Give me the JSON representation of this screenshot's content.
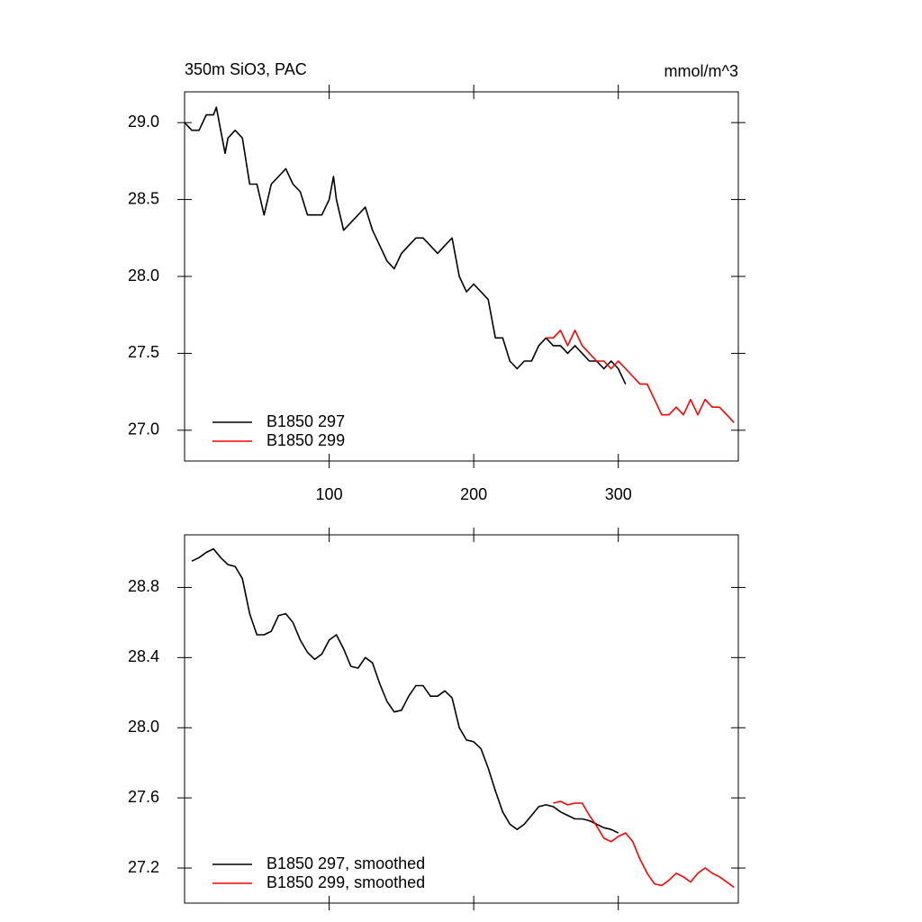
{
  "chart_data": [
    {
      "type": "line",
      "title": "350m SiO3, PAC",
      "units": "mmol/m^3",
      "xlim": [
        0,
        383
      ],
      "xticks": [
        100,
        200,
        300
      ],
      "show_xtick_labels": true,
      "ylim": [
        26.8,
        29.2
      ],
      "yticks": [
        {
          "value": 27,
          "label": "27.0"
        },
        27.5,
        {
          "value": 28,
          "label": "28.0"
        },
        28.5,
        {
          "value": 29,
          "label": "29.0"
        }
      ],
      "series": [
        {
          "name": "B1850 297",
          "color": "#000000",
          "x": [
            0,
            5,
            10,
            15,
            20,
            22,
            25,
            28,
            30,
            35,
            40,
            45,
            50,
            55,
            60,
            65,
            70,
            75,
            80,
            85,
            90,
            95,
            100,
            103,
            105,
            110,
            115,
            120,
            125,
            130,
            135,
            140,
            145,
            150,
            155,
            160,
            165,
            170,
            175,
            180,
            185,
            190,
            195,
            200,
            205,
            210,
            215,
            220,
            225,
            230,
            235,
            240,
            245,
            250,
            255,
            260,
            265,
            270,
            275,
            280,
            285,
            290,
            295,
            300,
            305
          ],
          "values": [
            29.0,
            28.95,
            28.95,
            29.05,
            29.05,
            29.1,
            28.95,
            28.8,
            28.9,
            28.95,
            28.9,
            28.6,
            28.6,
            28.4,
            28.6,
            28.65,
            28.7,
            28.6,
            28.55,
            28.4,
            28.4,
            28.4,
            28.5,
            28.65,
            28.5,
            28.3,
            28.35,
            28.4,
            28.45,
            28.3,
            28.2,
            28.1,
            28.05,
            28.15,
            28.2,
            28.25,
            28.25,
            28.2,
            28.15,
            28.2,
            28.25,
            28.0,
            27.9,
            27.95,
            27.9,
            27.85,
            27.6,
            27.6,
            27.45,
            27.4,
            27.45,
            27.45,
            27.55,
            27.6,
            27.55,
            27.55,
            27.5,
            27.55,
            27.5,
            27.45,
            27.45,
            27.4,
            27.45,
            27.4,
            27.3
          ]
        },
        {
          "name": "B1850 299",
          "color": "#ff0000",
          "x": [
            250,
            255,
            260,
            265,
            270,
            275,
            280,
            285,
            290,
            295,
            300,
            305,
            310,
            315,
            320,
            325,
            330,
            335,
            340,
            345,
            350,
            355,
            360,
            365,
            370,
            375,
            380
          ],
          "values": [
            27.6,
            27.6,
            27.65,
            27.55,
            27.65,
            27.55,
            27.5,
            27.45,
            27.45,
            27.4,
            27.45,
            27.4,
            27.35,
            27.3,
            27.3,
            27.2,
            27.1,
            27.1,
            27.15,
            27.1,
            27.2,
            27.1,
            27.2,
            27.15,
            27.15,
            27.1,
            27.05
          ]
        }
      ]
    },
    {
      "type": "line",
      "xlim": [
        0,
        383
      ],
      "xticks": [
        100,
        200,
        300
      ],
      "show_xtick_labels": false,
      "ylim": [
        27.0,
        29.1
      ],
      "yticks": [
        27.2,
        27.6,
        {
          "value": 28,
          "label": "28.0"
        },
        28.4,
        28.8
      ],
      "series": [
        {
          "name": "B1850 297, smoothed",
          "color": "#000000",
          "x": [
            5,
            10,
            15,
            20,
            25,
            30,
            35,
            40,
            45,
            50,
            55,
            60,
            65,
            70,
            75,
            80,
            85,
            90,
            95,
            100,
            105,
            110,
            115,
            120,
            125,
            130,
            135,
            140,
            145,
            150,
            155,
            160,
            165,
            170,
            175,
            180,
            185,
            190,
            195,
            200,
            205,
            210,
            215,
            220,
            225,
            230,
            235,
            240,
            245,
            250,
            255,
            260,
            265,
            270,
            275,
            280,
            285,
            290,
            295,
            300
          ],
          "values": [
            28.95,
            28.97,
            29.0,
            29.02,
            28.97,
            28.93,
            28.92,
            28.85,
            28.65,
            28.53,
            28.53,
            28.55,
            28.64,
            28.65,
            28.6,
            28.5,
            28.43,
            28.39,
            28.42,
            28.5,
            28.53,
            28.45,
            28.35,
            28.34,
            28.4,
            28.37,
            28.25,
            28.15,
            28.09,
            28.1,
            28.18,
            28.24,
            28.24,
            28.18,
            28.18,
            28.21,
            28.17,
            28.0,
            27.93,
            27.92,
            27.88,
            27.77,
            27.64,
            27.52,
            27.45,
            27.42,
            27.45,
            27.5,
            27.55,
            27.56,
            27.55,
            27.52,
            27.5,
            27.48,
            27.48,
            27.47,
            27.45,
            27.43,
            27.42,
            27.4
          ]
        },
        {
          "name": "B1850 299, smoothed",
          "color": "#ff0000",
          "x": [
            255,
            260,
            265,
            270,
            275,
            280,
            285,
            290,
            295,
            300,
            305,
            310,
            315,
            320,
            325,
            330,
            335,
            340,
            345,
            350,
            355,
            360,
            365,
            370,
            375,
            380
          ],
          "values": [
            27.57,
            27.58,
            27.56,
            27.57,
            27.57,
            27.5,
            27.44,
            27.37,
            27.35,
            27.38,
            27.4,
            27.35,
            27.25,
            27.17,
            27.11,
            27.1,
            27.13,
            27.17,
            27.15,
            27.12,
            27.17,
            27.2,
            27.17,
            27.15,
            27.12,
            27.09
          ]
        }
      ]
    }
  ]
}
